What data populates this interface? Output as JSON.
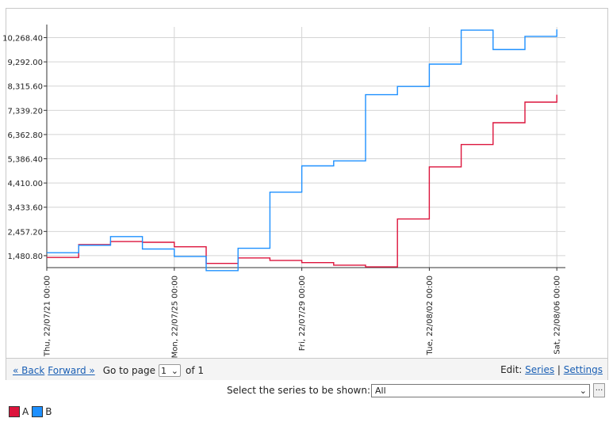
{
  "chart_data": {
    "type": "line",
    "step": true,
    "grid": true,
    "title": "",
    "xlabel": "",
    "ylabel": "",
    "x_ticks": [
      "Thu, 22/07/21 00:00",
      "Mon, 22/07/25 00:00",
      "Fri, 22/07/29 00:00",
      "Tue, 22/08/02 00:00",
      "Sat, 22/08/06 00:00"
    ],
    "y_ticks": [
      "1,480.80",
      "2,457.20",
      "3,433.60",
      "4,410.00",
      "5,386.40",
      "6,362.80",
      "7,339.20",
      "8,315.60",
      "9,292.00",
      "10,268.40"
    ],
    "y_tick_values": [
      1480.8,
      2457.2,
      3433.6,
      4410.0,
      5386.4,
      6362.8,
      7339.2,
      8315.6,
      9292.0,
      10268.4
    ],
    "ylim": [
      1000,
      10700
    ],
    "xlim": [
      "2022-07-21",
      "2022-08-06"
    ],
    "series": [
      {
        "name": "A",
        "color": "#dc143c",
        "x": [
          "2022-07-21",
          "2022-07-22",
          "2022-07-23",
          "2022-07-24",
          "2022-07-25",
          "2022-07-26",
          "2022-07-27",
          "2022-07-28",
          "2022-07-29",
          "2022-07-30",
          "2022-07-31",
          "2022-08-01",
          "2022-08-02",
          "2022-08-03",
          "2022-08-04",
          "2022-08-05"
        ],
        "values": [
          1410,
          1930,
          2050,
          2020,
          1840,
          1170,
          1390,
          1290,
          1200,
          1100,
          1030,
          2960,
          5060,
          5960,
          6840,
          7670
        ]
      },
      {
        "name": "B",
        "color": "#1e90ff",
        "x": [
          "2022-07-21",
          "2022-07-22",
          "2022-07-23",
          "2022-07-24",
          "2022-07-25",
          "2022-07-26",
          "2022-07-27",
          "2022-07-28",
          "2022-07-29",
          "2022-07-30",
          "2022-07-31",
          "2022-08-01",
          "2022-08-02",
          "2022-08-03",
          "2022-08-04",
          "2022-08-05"
        ],
        "values": [
          1600,
          1900,
          2250,
          1750,
          1450,
          880,
          1780,
          4040,
          5100,
          5300,
          7970,
          8300,
          9200,
          10570,
          9790,
          10320
        ]
      }
    ]
  },
  "nav": {
    "back_label": "« Back",
    "forward_label": "Forward »",
    "goto_label": "Go to page",
    "page_value": "1",
    "of_label": "of 1",
    "edit_label": "Edit:",
    "series_link": "Series",
    "separator": "|",
    "settings_link": "Settings"
  },
  "filter": {
    "label": "Select the series to be shown:",
    "selected": "All",
    "more_label": "..."
  },
  "legend": [
    {
      "name": "A",
      "color": "#dc143c"
    },
    {
      "name": "B",
      "color": "#1e90ff"
    }
  ]
}
